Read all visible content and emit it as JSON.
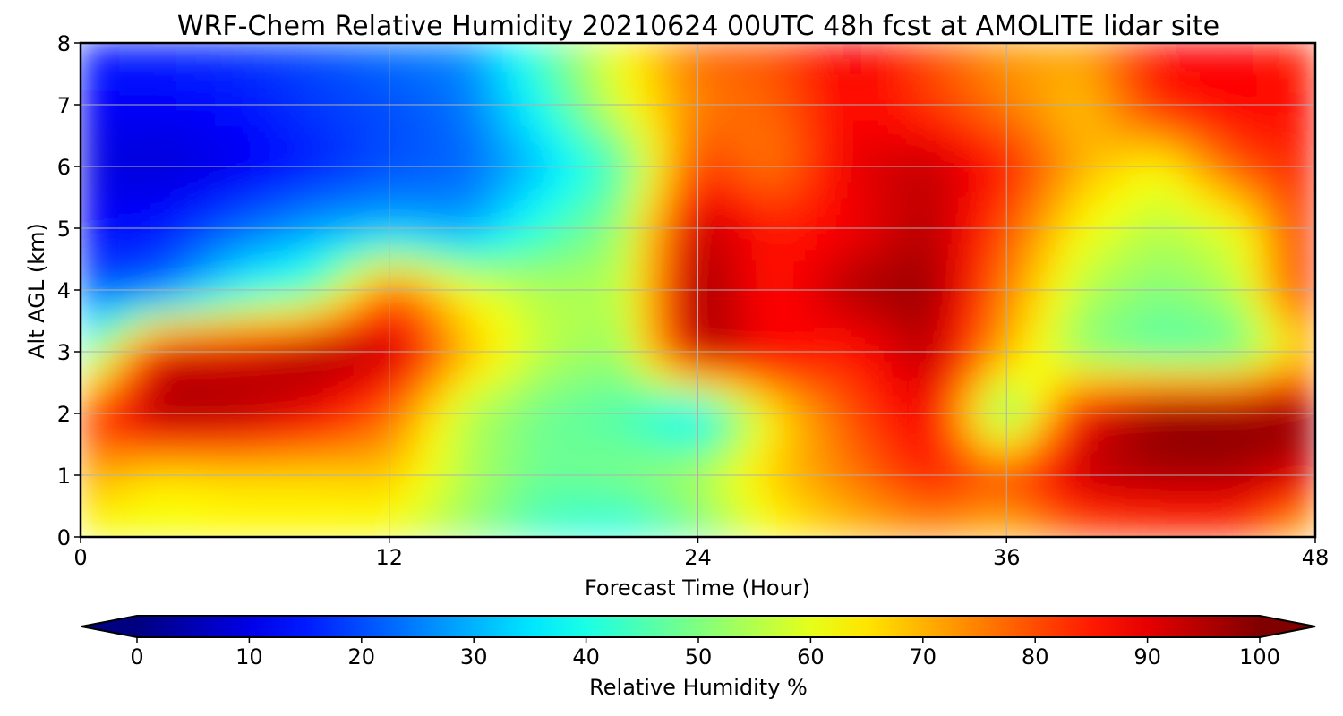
{
  "chart_data": {
    "type": "heatmap",
    "title": "WRF-Chem Relative Humidity 20210624 00UTC 48h fcst at AMOLITE lidar site",
    "xlabel": "Forecast Time (Hour)",
    "ylabel": "Alt AGL (km)",
    "xlim": [
      0,
      48
    ],
    "ylim": [
      0,
      8
    ],
    "x_ticks": [
      "0",
      "12",
      "24",
      "36",
      "48"
    ],
    "y_ticks": [
      "0",
      "1",
      "2",
      "3",
      "4",
      "5",
      "6",
      "7",
      "8"
    ],
    "grid": true,
    "colormap": "jet",
    "x": [
      0,
      3,
      6,
      9,
      12,
      15,
      18,
      21,
      24,
      27,
      30,
      33,
      36,
      39,
      42,
      45,
      48
    ],
    "y": [
      0,
      1,
      2,
      3,
      4,
      5,
      6,
      7,
      8
    ],
    "z": [
      [
        60,
        60,
        62,
        62,
        60,
        52,
        42,
        38,
        48,
        62,
        68,
        72,
        68,
        78,
        80,
        80,
        65
      ],
      [
        72,
        65,
        66,
        66,
        68,
        55,
        48,
        50,
        55,
        68,
        76,
        85,
        80,
        94,
        96,
        96,
        90
      ],
      [
        80,
        97,
        96,
        90,
        78,
        55,
        48,
        45,
        32,
        65,
        80,
        90,
        45,
        90,
        100,
        100,
        100
      ],
      [
        40,
        92,
        92,
        97,
        95,
        70,
        56,
        52,
        97,
        88,
        85,
        95,
        70,
        50,
        45,
        46,
        70
      ],
      [
        20,
        22,
        38,
        45,
        80,
        62,
        55,
        55,
        98,
        85,
        96,
        98,
        75,
        55,
        50,
        55,
        90
      ],
      [
        12,
        14,
        22,
        28,
        30,
        28,
        42,
        52,
        95,
        85,
        88,
        95,
        80,
        62,
        55,
        60,
        88
      ],
      [
        10,
        8,
        10,
        15,
        20,
        22,
        32,
        45,
        82,
        75,
        90,
        94,
        85,
        70,
        62,
        80,
        85
      ],
      [
        12,
        12,
        14,
        18,
        20,
        24,
        40,
        60,
        75,
        78,
        88,
        82,
        75,
        68,
        85,
        88,
        86
      ],
      [
        15,
        16,
        18,
        20,
        24,
        26,
        45,
        62,
        78,
        80,
        90,
        80,
        72,
        72,
        88,
        88,
        82
      ]
    ],
    "colorbar": {
      "label": "Relative Humidity %",
      "range": [
        0,
        100
      ],
      "extend": "both",
      "ticks": [
        "0",
        "10",
        "20",
        "30",
        "40",
        "50",
        "60",
        "70",
        "80",
        "90",
        "100"
      ]
    }
  }
}
